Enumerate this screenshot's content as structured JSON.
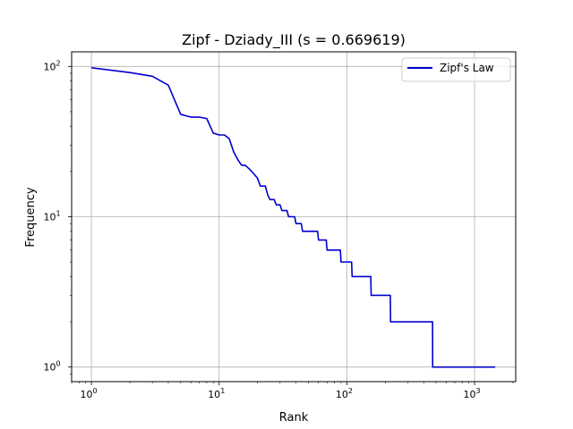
{
  "chart_data": {
    "type": "line",
    "title": "Zipf - Dziady_III (s = 0.669619)",
    "xlabel": "Rank",
    "ylabel": "Frequency",
    "xscale": "log",
    "yscale": "log",
    "xlim": [
      0.7,
      2100
    ],
    "ylim": [
      0.8,
      125
    ],
    "grid": true,
    "legend_position": "upper-right",
    "x_ticks": [
      {
        "value": 1,
        "base": "10",
        "exp": "0"
      },
      {
        "value": 10,
        "base": "10",
        "exp": "1"
      },
      {
        "value": 100,
        "base": "10",
        "exp": "2"
      },
      {
        "value": 1000,
        "base": "10",
        "exp": "3"
      }
    ],
    "y_ticks": [
      {
        "value": 1,
        "base": "10",
        "exp": "0"
      },
      {
        "value": 10,
        "base": "10",
        "exp": "1"
      },
      {
        "value": 100,
        "base": "10",
        "exp": "2"
      }
    ],
    "series": [
      {
        "name": "Zipf's Law",
        "color": "#0000cc",
        "points": [
          [
            1,
            98
          ],
          [
            2,
            91
          ],
          [
            3,
            86
          ],
          [
            4,
            75
          ],
          [
            5,
            48
          ],
          [
            6,
            46
          ],
          [
            7,
            46
          ],
          [
            8,
            45
          ],
          [
            9,
            36
          ],
          [
            10,
            35
          ],
          [
            11,
            35
          ],
          [
            12,
            33
          ],
          [
            13,
            27
          ],
          [
            14,
            24
          ],
          [
            15,
            22
          ],
          [
            16,
            22
          ],
          [
            17,
            21
          ],
          [
            18,
            20
          ],
          [
            19,
            19
          ],
          [
            20,
            18
          ],
          [
            21,
            16
          ],
          [
            22,
            16
          ],
          [
            23,
            16
          ],
          [
            24,
            14
          ],
          [
            25,
            13
          ],
          [
            26,
            13
          ],
          [
            27,
            13
          ],
          [
            28,
            12
          ],
          [
            29,
            12
          ],
          [
            30,
            12
          ],
          [
            31,
            11
          ],
          [
            32,
            11
          ],
          [
            33,
            11
          ],
          [
            34,
            11
          ],
          [
            35,
            10
          ],
          [
            36,
            10
          ],
          [
            37,
            10
          ],
          [
            38,
            10
          ],
          [
            39,
            10
          ],
          [
            40,
            9
          ],
          [
            44,
            9
          ],
          [
            45,
            8
          ],
          [
            59,
            8
          ],
          [
            60,
            7
          ],
          [
            69,
            7
          ],
          [
            70,
            6
          ],
          [
            89,
            6
          ],
          [
            90,
            5
          ],
          [
            109,
            5
          ],
          [
            110,
            4
          ],
          [
            154,
            4
          ],
          [
            155,
            3
          ],
          [
            219,
            3
          ],
          [
            220,
            2
          ],
          [
            469,
            2
          ],
          [
            470,
            1
          ],
          [
            1450,
            1
          ]
        ]
      }
    ]
  }
}
